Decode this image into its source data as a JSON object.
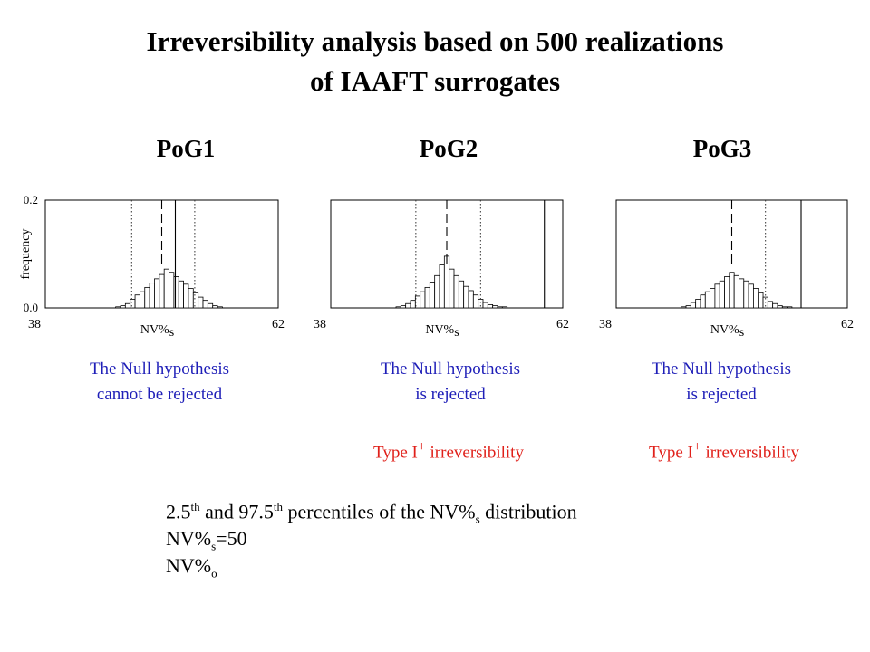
{
  "title_line1": "Irreversibility analysis based on 500 realizations",
  "title_line2": "of IAAFT surrogates",
  "y_axis_label": "frequency",
  "panels": [
    {
      "name": "PoG1",
      "verdict_line1": "The Null hypothesis",
      "verdict_line2": "cannot be rejected",
      "irreversibility": ""
    },
    {
      "name": "PoG2",
      "verdict_line1": "The Null hypothesis",
      "verdict_line2": "is  rejected",
      "irreversibility_main": "Type I",
      "irreversibility_sup": "+",
      "irreversibility_rest": " irreversibility"
    },
    {
      "name": "PoG3",
      "verdict_line1": "The Null hypothesis",
      "verdict_line2": "is  rejected",
      "irreversibility_main": "Type I",
      "irreversibility_sup": "+",
      "irreversibility_rest": " irreversibility"
    }
  ],
  "legend": {
    "percentiles": {
      "a": "2.5",
      "a_sup": "th",
      "b": " and 97.5",
      "b_sup": "th",
      "c": " percentiles of the NV%",
      "c_sub": "s",
      "d": " distribution"
    },
    "dashed": {
      "a": "NV%",
      "a_sub": "s",
      "b": "=50"
    },
    "solid": {
      "a": "NV%",
      "a_sub": "o"
    }
  },
  "colors": {
    "verdict": "#1f1fb8",
    "irreversibility": "#e0201a"
  },
  "chart_data": [
    {
      "type": "bar",
      "title": "PoG1",
      "xlabel": "NV%s",
      "ylabel": "frequency",
      "xlim": [
        38,
        62
      ],
      "ylim": [
        0.0,
        0.2
      ],
      "x_ticks": [
        "38",
        "62"
      ],
      "y_ticks": [
        "0.2",
        "0.0"
      ],
      "bins_x": [
        45.5,
        46,
        46.5,
        47,
        47.5,
        48,
        48.5,
        49,
        49.5,
        50,
        50.5,
        51,
        51.5,
        52,
        52.5,
        53,
        53.5,
        54,
        54.5,
        55,
        55.5,
        56
      ],
      "values": [
        0.002,
        0.004,
        0.008,
        0.016,
        0.024,
        0.03,
        0.038,
        0.046,
        0.054,
        0.062,
        0.072,
        0.066,
        0.058,
        0.05,
        0.044,
        0.036,
        0.028,
        0.02,
        0.014,
        0.008,
        0.004,
        0.002
      ],
      "percentile_2_5": 46.9,
      "percentile_97_5": 53.4,
      "nv_s_50": 50,
      "nv_o": 51.4
    },
    {
      "type": "bar",
      "title": "PoG2",
      "xlabel": "NV%s",
      "ylabel": "frequency",
      "xlim": [
        38,
        62
      ],
      "ylim": [
        0.0,
        0.2
      ],
      "x_ticks": [
        "38",
        "62"
      ],
      "y_ticks": [],
      "bins_x": [
        45,
        45.5,
        46,
        46.5,
        47,
        47.5,
        48,
        48.5,
        49,
        49.5,
        50,
        50.5,
        51,
        51.5,
        52,
        52.5,
        53,
        53.5,
        54,
        54.5,
        55,
        55.5,
        56
      ],
      "values": [
        0.002,
        0.004,
        0.008,
        0.014,
        0.022,
        0.03,
        0.038,
        0.048,
        0.06,
        0.08,
        0.096,
        0.072,
        0.06,
        0.05,
        0.04,
        0.032,
        0.024,
        0.016,
        0.01,
        0.006,
        0.004,
        0.002,
        0.002
      ],
      "percentile_2_5": 46.8,
      "percentile_97_5": 53.5,
      "nv_s_50": 50,
      "nv_o": 60.1
    },
    {
      "type": "bar",
      "title": "PoG3",
      "xlabel": "NV%s",
      "ylabel": "frequency",
      "xlim": [
        38,
        62
      ],
      "ylim": [
        0.0,
        0.2
      ],
      "x_ticks": [
        "38",
        "62"
      ],
      "y_ticks": [],
      "bins_x": [
        45,
        45.5,
        46,
        46.5,
        47,
        47.5,
        48,
        48.5,
        49,
        49.5,
        50,
        50.5,
        51,
        51.5,
        52,
        52.5,
        53,
        53.5,
        54,
        54.5,
        55,
        55.5,
        56
      ],
      "values": [
        0.002,
        0.004,
        0.01,
        0.016,
        0.024,
        0.03,
        0.036,
        0.044,
        0.05,
        0.058,
        0.066,
        0.06,
        0.054,
        0.05,
        0.044,
        0.036,
        0.028,
        0.02,
        0.012,
        0.008,
        0.004,
        0.002,
        0.002
      ],
      "percentile_2_5": 46.8,
      "percentile_97_5": 53.5,
      "nv_s_50": 50,
      "nv_o": 57.2
    }
  ]
}
